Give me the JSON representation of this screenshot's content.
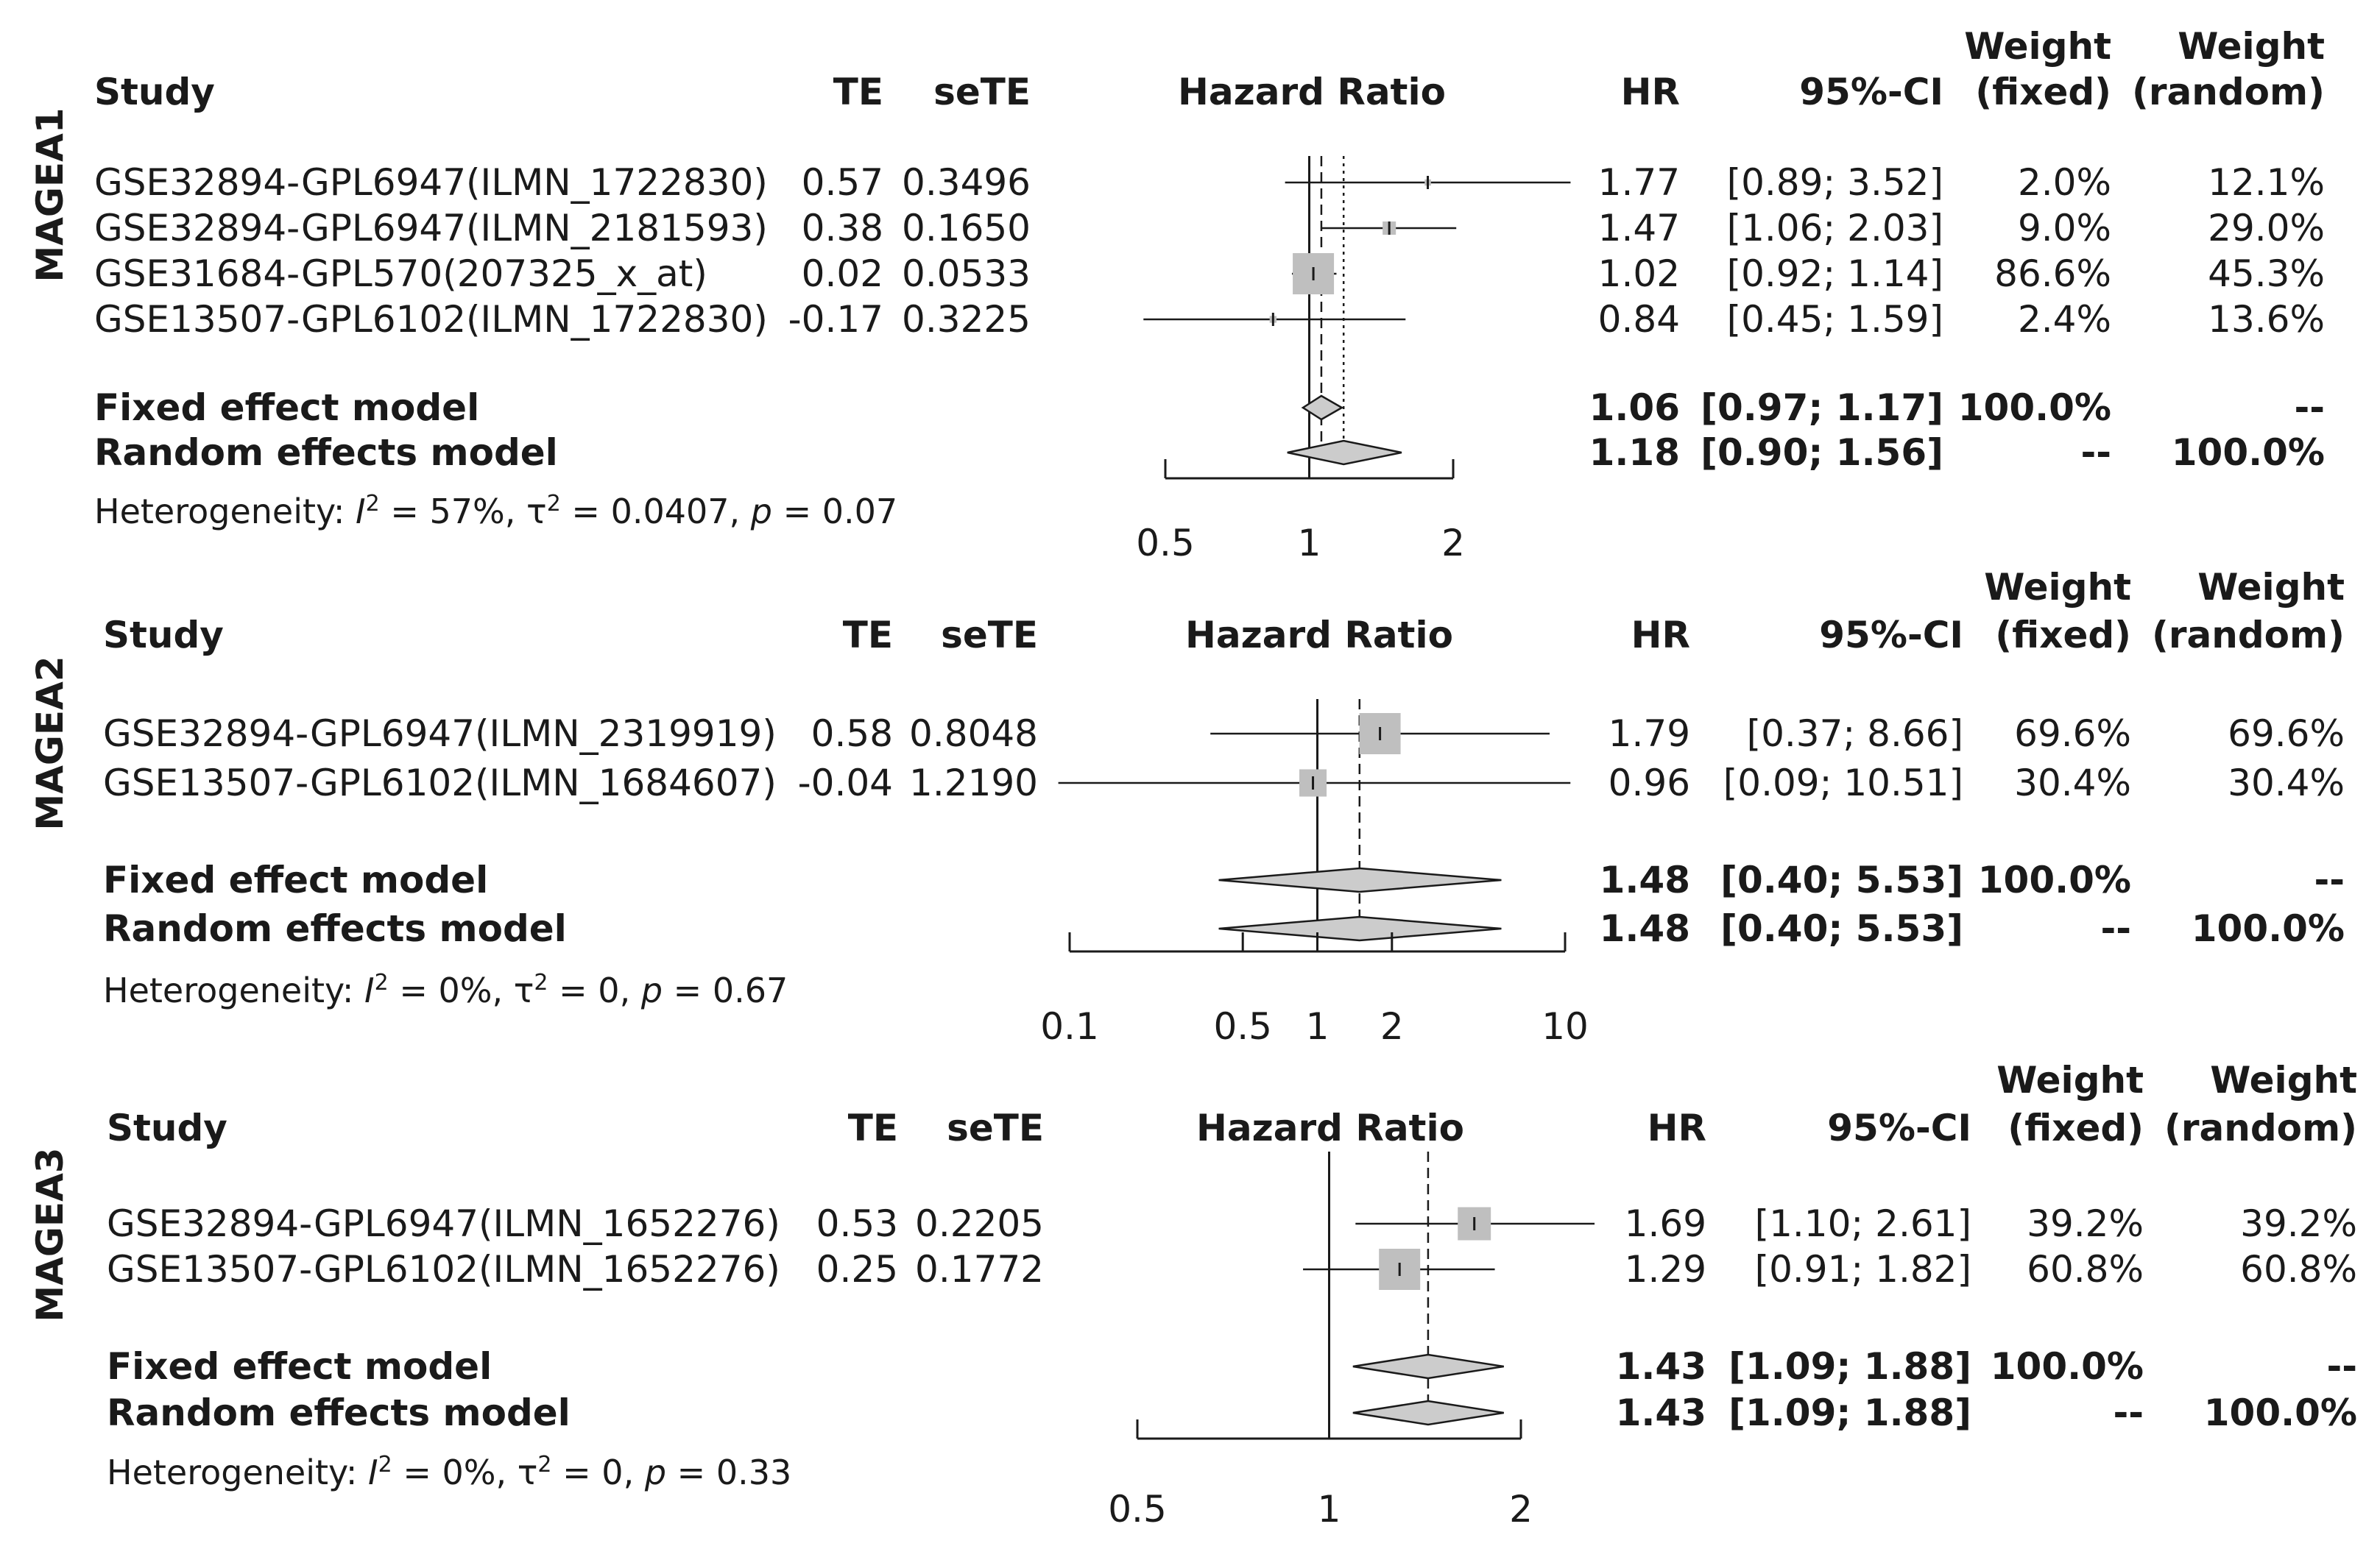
{
  "chart_data": [
    {
      "type": "forest",
      "gene": "MAGEA1",
      "xlabel": "Hazard Ratio",
      "scale": "log",
      "xlim": [
        0.5,
        2
      ],
      "ticks": [
        {
          "v": 0.5,
          "label": "0.5"
        },
        {
          "v": 1,
          "label": "1"
        },
        {
          "v": 2,
          "label": "2"
        }
      ],
      "columns": {
        "study": "Study",
        "te": "TE",
        "sete": "seTE",
        "plot": "Hazard Ratio",
        "hr": "HR",
        "ci": "95%-CI",
        "wf_top": "Weight",
        "wf_bot": "(fixed)",
        "wr_top": "Weight",
        "wr_bot": "(random)"
      },
      "studies": [
        {
          "name": "GSE32894-GPL6947(ILMN_1722830)",
          "te": "0.57",
          "sete": "0.3496",
          "hr": 1.77,
          "lo": 0.89,
          "hi": 3.52,
          "hr_label": "1.77",
          "ci_label": "[0.89; 3.52]",
          "w_fixed": "2.0%",
          "w_random": "12.1%",
          "wf": 2.0
        },
        {
          "name": "GSE32894-GPL6947(ILMN_2181593)",
          "te": "0.38",
          "sete": "0.1650",
          "hr": 1.47,
          "lo": 1.06,
          "hi": 2.03,
          "hr_label": "1.47",
          "ci_label": "[1.06; 2.03]",
          "w_fixed": "9.0%",
          "w_random": "29.0%",
          "wf": 9.0
        },
        {
          "name": "GSE31684-GPL570(207325_x_at)",
          "te": "0.02",
          "sete": "0.0533",
          "hr": 1.02,
          "lo": 0.92,
          "hi": 1.14,
          "hr_label": "1.02",
          "ci_label": "[0.92; 1.14]",
          "w_fixed": "86.6%",
          "w_random": "45.3%",
          "wf": 86.6
        },
        {
          "name": "GSE13507-GPL6102(ILMN_1722830)",
          "te": "-0.17",
          "sete": "0.3225",
          "hr": 0.84,
          "lo": 0.45,
          "hi": 1.59,
          "hr_label": "0.84",
          "ci_label": "[0.45; 1.59]",
          "w_fixed": "2.4%",
          "w_random": "13.6%",
          "wf": 2.4
        }
      ],
      "fixed": {
        "label": "Fixed effect model",
        "hr": 1.06,
        "lo": 0.97,
        "hi": 1.17,
        "hr_label": "1.06",
        "ci_label": "[0.97; 1.17]",
        "w_fixed": "100.0%",
        "w_random": "--"
      },
      "random": {
        "label": "Random effects model",
        "hr": 1.18,
        "lo": 0.9,
        "hi": 1.56,
        "hr_label": "1.18",
        "ci_label": "[0.90; 1.56]",
        "w_fixed": "--",
        "w_random": "100.0%"
      },
      "heterogeneity": {
        "prefix": "Heterogeneity: ",
        "i": "I",
        "i2_rest": " = 57%, τ",
        "tau2_rest": " = 0.0407, ",
        "p": "p",
        "p_rest": " = 0.07"
      }
    },
    {
      "type": "forest",
      "gene": "MAGEA2",
      "xlabel": "Hazard Ratio",
      "scale": "log",
      "xlim": [
        0.1,
        10
      ],
      "ticks": [
        {
          "v": 0.1,
          "label": "0.1"
        },
        {
          "v": 0.5,
          "label": "0.5"
        },
        {
          "v": 1,
          "label": "1"
        },
        {
          "v": 2,
          "label": "2"
        },
        {
          "v": 10,
          "label": "10"
        }
      ],
      "columns": {
        "study": "Study",
        "te": "TE",
        "sete": "seTE",
        "plot": "Hazard Ratio",
        "hr": "HR",
        "ci": "95%-CI",
        "wf_top": "Weight",
        "wf_bot": "(fixed)",
        "wr_top": "Weight",
        "wr_bot": "(random)"
      },
      "studies": [
        {
          "name": "GSE32894-GPL6947(ILMN_2319919)",
          "te": "0.58",
          "sete": "0.8048",
          "hr": 1.79,
          "lo": 0.37,
          "hi": 8.66,
          "hr_label": "1.79",
          "ci_label": "[0.37;  8.66]",
          "w_fixed": "69.6%",
          "w_random": "69.6%",
          "wf": 69.6
        },
        {
          "name": "GSE13507-GPL6102(ILMN_1684607)",
          "te": "-0.04",
          "sete": "1.2190",
          "hr": 0.96,
          "lo": 0.09,
          "hi": 10.51,
          "hr_label": "0.96",
          "ci_label": "[0.09; 10.51]",
          "w_fixed": "30.4%",
          "w_random": "30.4%",
          "wf": 30.4
        }
      ],
      "fixed": {
        "label": "Fixed effect model",
        "hr": 1.48,
        "lo": 0.4,
        "hi": 5.53,
        "hr_label": "1.48",
        "ci_label": "[0.40;  5.53]",
        "w_fixed": "100.0%",
        "w_random": "--"
      },
      "random": {
        "label": "Random effects model",
        "hr": 1.48,
        "lo": 0.4,
        "hi": 5.53,
        "hr_label": "1.48",
        "ci_label": "[0.40;  5.53]",
        "w_fixed": "--",
        "w_random": "100.0%"
      },
      "heterogeneity": {
        "prefix": "Heterogeneity: ",
        "i": "I",
        "i2_rest": " = 0%, τ",
        "tau2_rest": " = 0, ",
        "p": "p",
        "p_rest": " = 0.67"
      }
    },
    {
      "type": "forest",
      "gene": "MAGEA3",
      "xlabel": "Hazard Ratio",
      "scale": "log",
      "xlim": [
        0.5,
        2
      ],
      "ticks": [
        {
          "v": 0.5,
          "label": "0.5"
        },
        {
          "v": 1,
          "label": "1"
        },
        {
          "v": 2,
          "label": "2"
        }
      ],
      "columns": {
        "study": "Study",
        "te": "TE",
        "sete": "seTE",
        "plot": "Hazard Ratio",
        "hr": "HR",
        "ci": "95%-CI",
        "wf_top": "Weight",
        "wf_bot": "(fixed)",
        "wr_top": "Weight",
        "wr_bot": "(random)"
      },
      "studies": [
        {
          "name": "GSE32894-GPL6947(ILMN_1652276)",
          "te": "0.53",
          "sete": "0.2205",
          "hr": 1.69,
          "lo": 1.1,
          "hi": 2.61,
          "hr_label": "1.69",
          "ci_label": "[1.10; 2.61]",
          "w_fixed": "39.2%",
          "w_random": "39.2%",
          "wf": 39.2
        },
        {
          "name": "GSE13507-GPL6102(ILMN_1652276)",
          "te": "0.25",
          "sete": "0.1772",
          "hr": 1.29,
          "lo": 0.91,
          "hi": 1.82,
          "hr_label": "1.29",
          "ci_label": "[0.91; 1.82]",
          "w_fixed": "60.8%",
          "w_random": "60.8%",
          "wf": 60.8
        }
      ],
      "fixed": {
        "label": "Fixed effect model",
        "hr": 1.43,
        "lo": 1.09,
        "hi": 1.88,
        "hr_label": "1.43",
        "ci_label": "[1.09; 1.88]",
        "w_fixed": "100.0%",
        "w_random": "--"
      },
      "random": {
        "label": "Random effects model",
        "hr": 1.43,
        "lo": 1.09,
        "hi": 1.88,
        "hr_label": "1.43",
        "ci_label": "[1.09; 1.88]",
        "w_fixed": "--",
        "w_random": "100.0%"
      },
      "heterogeneity": {
        "prefix": "Heterogeneity: ",
        "i": "I",
        "i2_rest": " = 0%, τ",
        "tau2_rest": " = 0, ",
        "p": "p",
        "p_rest": " = 0.33"
      }
    }
  ],
  "colors": {
    "ink": "#1a1a1a",
    "box": "#bfbfbf",
    "diamond": "#cccccc"
  }
}
